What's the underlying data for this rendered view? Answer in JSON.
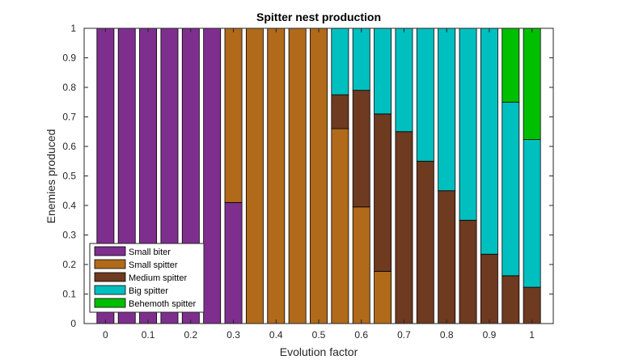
{
  "chart_data": {
    "type": "bar",
    "stacked": true,
    "title": "Spitter nest production",
    "xlabel": "Evolution factor",
    "ylabel": "Enemies produced",
    "xlim": [
      -0.05,
      1.05
    ],
    "ylim": [
      0,
      1
    ],
    "xticks": [
      0,
      0.1,
      0.2,
      0.3,
      0.4,
      0.5,
      0.6,
      0.7,
      0.8,
      0.9,
      1
    ],
    "xtick_labels": [
      "0",
      "0.1",
      "0.2",
      "0.3",
      "0.4",
      "0.5",
      "0.6",
      "0.7",
      "0.8",
      "0.9",
      "1"
    ],
    "yticks": [
      0,
      0.1,
      0.2,
      0.3,
      0.4,
      0.5,
      0.6,
      0.7,
      0.8,
      0.9,
      1
    ],
    "ytick_labels": [
      "0",
      "0.1",
      "0.2",
      "0.3",
      "0.4",
      "0.5",
      "0.6",
      "0.7",
      "0.8",
      "0.9",
      "1"
    ],
    "grid": false,
    "legend_position": "bottom-left",
    "x": [
      0,
      0.05,
      0.1,
      0.15,
      0.2,
      0.25,
      0.3,
      0.35,
      0.4,
      0.45,
      0.5,
      0.55,
      0.6,
      0.65,
      0.7,
      0.75,
      0.8,
      0.85,
      0.9,
      0.95,
      1
    ],
    "series": [
      {
        "name": "Small biter",
        "color": "#7E2F8E",
        "values": [
          1,
          1,
          1,
          1,
          1,
          1,
          0.41,
          0,
          0,
          0,
          0,
          0,
          0,
          0,
          0,
          0,
          0,
          0,
          0,
          0,
          0
        ]
      },
      {
        "name": "Small spitter",
        "color": "#B06A1A",
        "values": [
          0,
          0,
          0,
          0,
          0,
          0,
          0.59,
          1,
          1,
          1,
          1,
          0.66,
          0.395,
          0.177,
          0,
          0,
          0,
          0,
          0,
          0,
          0
        ]
      },
      {
        "name": "Medium spitter",
        "color": "#6E3A20",
        "values": [
          0,
          0,
          0,
          0,
          0,
          0,
          0,
          0,
          0,
          0,
          0,
          0.115,
          0.395,
          0.533,
          0.65,
          0.55,
          0.45,
          0.35,
          0.235,
          0.162,
          0.123
        ]
      },
      {
        "name": "Big spitter",
        "color": "#00BFBF",
        "values": [
          0,
          0,
          0,
          0,
          0,
          0,
          0,
          0,
          0,
          0,
          0,
          0.225,
          0.21,
          0.29,
          0.35,
          0.45,
          0.55,
          0.65,
          0.765,
          0.588,
          0.5
        ]
      },
      {
        "name": "Behemoth spitter",
        "color": "#00BF00",
        "values": [
          0,
          0,
          0,
          0,
          0,
          0,
          0,
          0,
          0,
          0,
          0,
          0,
          0,
          0,
          0,
          0,
          0,
          0,
          0,
          0.25,
          0.377
        ]
      }
    ]
  }
}
